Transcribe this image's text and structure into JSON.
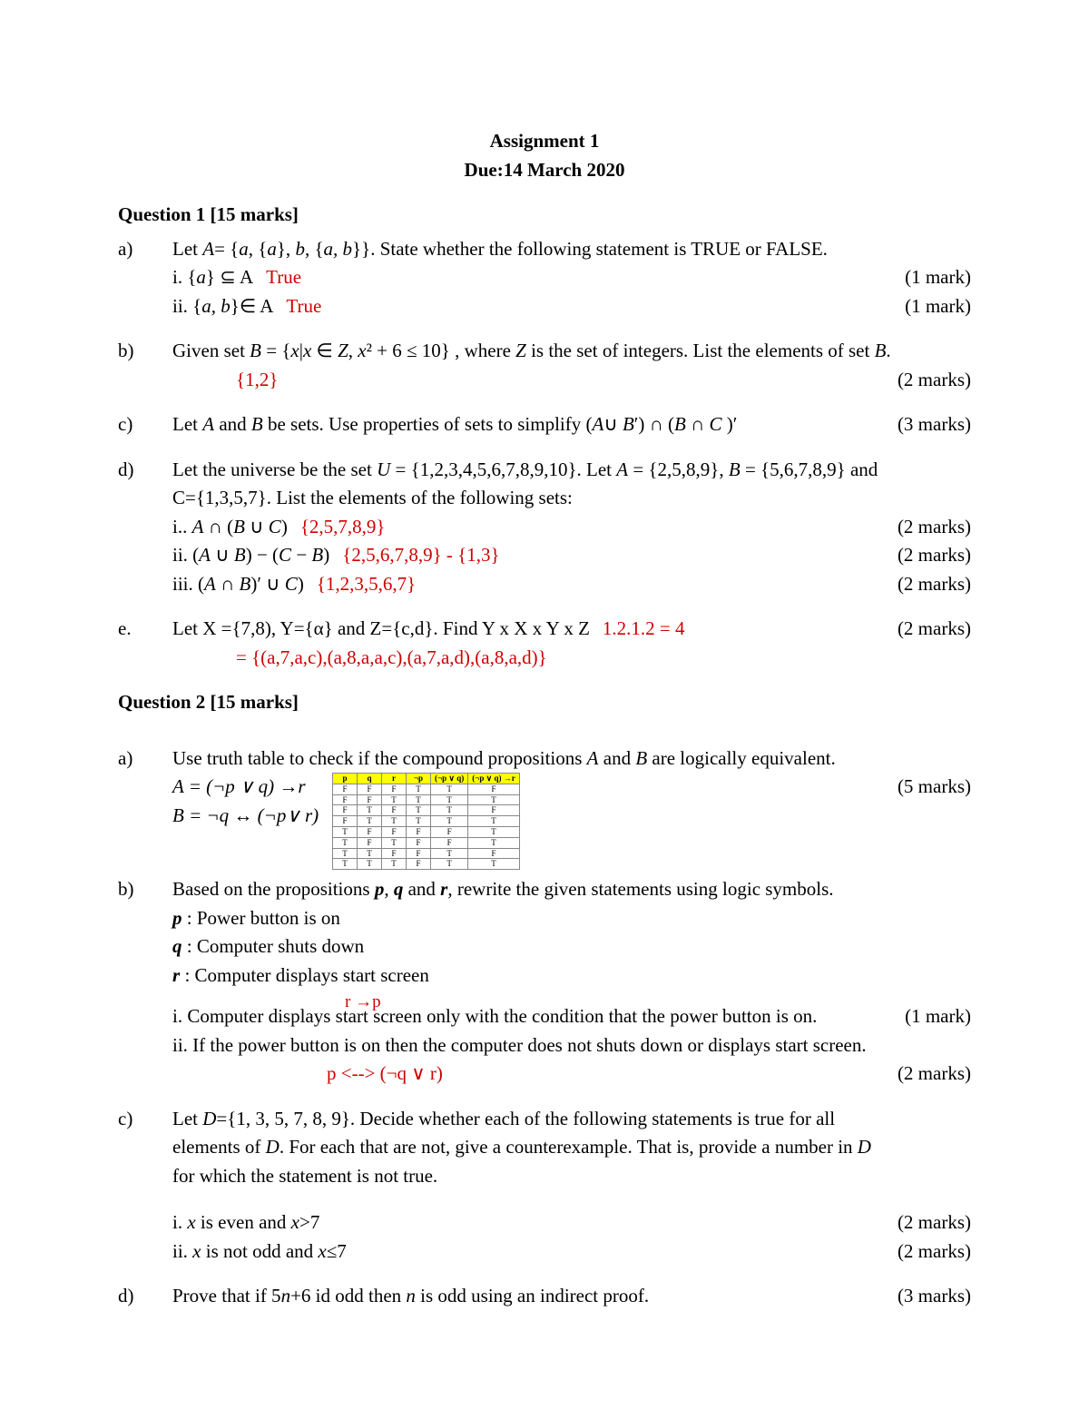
{
  "header": {
    "title": "Assignment 1",
    "due": "Due:14 March 2020"
  },
  "q1": {
    "header": "Question 1 [15 marks]",
    "a": {
      "label": "a)",
      "prompt": "Let A= {a, {a}, b, {a, b}}. State whether the following statement is TRUE or FALSE.",
      "i_text": "i. {a} ⊆ A",
      "i_ans": "True",
      "i_marks": "(1 mark)",
      "ii_text": "ii. {a, b}∈ A",
      "ii_ans": "True",
      "ii_marks": "(1 mark)"
    },
    "b": {
      "label": "b)",
      "prompt_pre": "Given set ",
      "set_expr": "B = {x | x ∈ Z, x² + 6 ≤ 10}",
      "prompt_post": " , where  Z is the set of integers. List the elements of set B.",
      "ans": "{1,2}",
      "marks": "(2 marks)"
    },
    "c": {
      "label": "c)",
      "text": "Let A and B be sets. Use properties of sets to simplify (A∪ B′) ∩ (B ∩ C )′",
      "marks": "(3 marks)"
    },
    "d": {
      "label": "d)",
      "line1": "Let the universe be the set  U = {1,2,3,4,5,6,7,8,9,10}. Let  A = {2,5,8,9}, B = {5,6,7,8,9} and",
      "line2": "C={1,3,5,7}. List the elements of the following sets:",
      "i_text": "i..  A ∩ (B ∪ C)",
      "i_ans": "{2,5,7,8,9}",
      "i_marks": "(2 marks)",
      "ii_text": "ii.  (A ∪ B) − (C − B)",
      "ii_ans": "{2,5,6,7,8,9} - {1,3}",
      "ii_marks": "(2 marks)",
      "iii_text": "iii.  (A ∩ B)′ ∪ C)",
      "iii_ans": "{1,2,3,5,6,7}",
      "iii_marks": "(2 marks)"
    },
    "e": {
      "label": "e.",
      "text": "Let X ={7,8), Y={α} and Z={c,d}. Find Y x X x Y x Z",
      "ans1": "1.2.1.2 = 4",
      "marks": "(2 marks)",
      "ans2": "= {(a,7,a,c),(a,8,a,a,c),(a,7,a,d),(a,8,a,d)}"
    }
  },
  "q2": {
    "header": "Question 2 [15 marks]",
    "a": {
      "label": "a)",
      "prompt": "Use truth table to check if the compound propositions A and B are logically equivalent.",
      "formulaA": "A = (¬p ∨ q) →r",
      "formulaB": "B = ¬q ↔ (¬p∨ r)",
      "marks": "(5 marks)",
      "table": {
        "headers": [
          "p",
          "q",
          "r",
          "¬p",
          "(¬p ∨ q)",
          "(¬p ∨ q) →r"
        ],
        "rows": [
          [
            "F",
            "F",
            "F",
            "T",
            "T",
            "F"
          ],
          [
            "F",
            "F",
            "T",
            "T",
            "T",
            "T"
          ],
          [
            "F",
            "T",
            "F",
            "T",
            "T",
            "F"
          ],
          [
            "F",
            "T",
            "T",
            "T",
            "T",
            "T"
          ],
          [
            "T",
            "F",
            "F",
            "F",
            "F",
            "T"
          ],
          [
            "T",
            "F",
            "T",
            "F",
            "F",
            "T"
          ],
          [
            "T",
            "T",
            "F",
            "F",
            "T",
            "F"
          ],
          [
            "T",
            "T",
            "T",
            "F",
            "T",
            "T"
          ]
        ]
      }
    },
    "b": {
      "label": "b)",
      "prompt": "Based on the propositions p, q and r, rewrite the given statements using logic symbols.",
      "p_def": " : Power button is on",
      "q_def": " : Computer shuts down",
      "r_def": " : Computer displays start screen",
      "i_ans": "r →p",
      "i_text": "i. Computer displays start screen only with the condition that the power button is on.",
      "i_marks": "(1 mark)",
      "ii_text": "ii. If the power button is on then the computer does not shuts down or displays start screen.",
      "ii_ans": "p <--> (¬q ∨ r)",
      "ii_marks": "(2   marks)"
    },
    "c": {
      "label": "c)",
      "line1": "Let D={1, 3, 5, 7, 8, 9}. Decide whether each of the following statements is true for all",
      "line2": "elements of D. For each that are not, give a counterexample. That is, provide a number in D",
      "line3": "for which the statement is not true.",
      "i_text": "i. x is even and x>7",
      "i_marks": "(2 marks)",
      "ii_text": "ii. x is not odd and x≤7",
      "ii_marks": "(2 marks)"
    },
    "d": {
      "label": "d)",
      "text": "Prove that if 5n+6 id odd then n is odd using an indirect proof.",
      "marks": "(3 marks)"
    }
  }
}
